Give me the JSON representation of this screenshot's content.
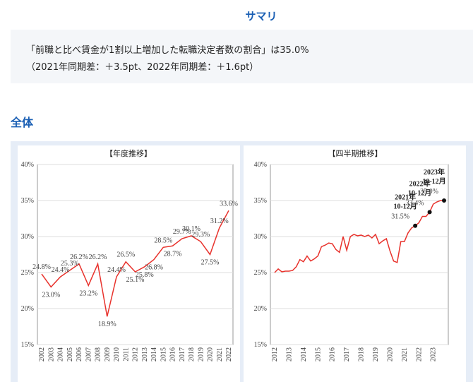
{
  "summary": {
    "heading": "サマリ",
    "lines": [
      "「前職と比べ賃金が1割以上増加した転職決定者数の割合」は35.0%",
      "（2021年同期差：＋3.5pt、2022年同期差：＋1.6pt）"
    ]
  },
  "section": "全体",
  "chart_data": [
    {
      "type": "line",
      "title": "【年度推移】",
      "color": "#e8322c",
      "categories": [
        "2002",
        "2003",
        "2004",
        "2005",
        "2006",
        "2007",
        "2008",
        "2009",
        "2010",
        "2011",
        "2012",
        "2013",
        "2014",
        "2015",
        "2016",
        "2017",
        "2018",
        "2019",
        "2020",
        "2021",
        "2022"
      ],
      "values": [
        24.8,
        23.0,
        24.4,
        25.3,
        26.2,
        23.2,
        26.2,
        18.9,
        24.4,
        26.5,
        25.1,
        25.8,
        26.8,
        28.5,
        28.7,
        29.7,
        30.1,
        29.3,
        27.5,
        31.2,
        33.6
      ],
      "value_labels": [
        "24.8%",
        "23.0%",
        "24.4%",
        "25.3%",
        "26.2%",
        "23.2%",
        "26.2%",
        "18.9%",
        "24.4%",
        "26.5%",
        "25.1%",
        "25.8%",
        "26.8%",
        "28.5%",
        "28.7%",
        "29.7%",
        "30.1%",
        "29.3%",
        "27.5%",
        "31.2%",
        "33.6%"
      ],
      "ylim": [
        15,
        40
      ],
      "yticks": [
        {
          "value": 15,
          "label": "15%"
        },
        {
          "value": 20,
          "label": "20%"
        },
        {
          "value": 25,
          "label": "25%"
        },
        {
          "value": 30,
          "label": "30%"
        },
        {
          "value": 35,
          "label": "35%"
        },
        {
          "value": 40,
          "label": "40%"
        }
      ]
    },
    {
      "type": "line",
      "title": "【四半期推移】",
      "color": "#e8322c",
      "categories": [
        "2012",
        null,
        null,
        null,
        "2013",
        null,
        null,
        null,
        "2014",
        null,
        null,
        null,
        "2015",
        null,
        null,
        null,
        "2016",
        null,
        null,
        null,
        "2017",
        null,
        null,
        null,
        "2018",
        null,
        null,
        null,
        "2019",
        null,
        null,
        null,
        "2020",
        null,
        null,
        null,
        "2021",
        null,
        null,
        null,
        "2022",
        null,
        null,
        null,
        "2023",
        null,
        null,
        null
      ],
      "values": [
        25.0,
        25.5,
        25.1,
        25.2,
        25.2,
        25.3,
        25.8,
        26.8,
        26.5,
        27.3,
        26.6,
        26.9,
        27.3,
        28.6,
        28.8,
        29.1,
        29.0,
        28.2,
        27.8,
        30.0,
        28.1,
        30.0,
        30.3,
        30.1,
        30.2,
        30.0,
        30.2,
        29.8,
        30.3,
        29.0,
        29.4,
        29.7,
        28.0,
        26.6,
        26.4,
        29.3,
        29.3,
        30.5,
        31.2,
        31.5,
        31.9,
        32.8,
        32.8,
        33.4,
        34.5,
        34.8,
        35.0,
        35.0
      ],
      "value_labels": [
        null,
        null,
        null,
        null,
        null,
        null,
        null,
        null,
        null,
        null,
        null,
        null,
        null,
        null,
        null,
        null,
        null,
        null,
        null,
        null,
        null,
        null,
        null,
        null,
        null,
        null,
        null,
        null,
        null,
        null,
        null,
        null,
        null,
        null,
        null,
        null,
        null,
        null,
        null,
        "31.5%",
        null,
        null,
        null,
        "33.4%",
        null,
        null,
        null,
        "35.0%"
      ],
      "point_labels": [
        null,
        null,
        null,
        null,
        null,
        null,
        null,
        null,
        null,
        null,
        null,
        null,
        null,
        null,
        null,
        null,
        null,
        null,
        null,
        null,
        null,
        null,
        null,
        null,
        null,
        null,
        null,
        null,
        null,
        null,
        null,
        null,
        null,
        null,
        null,
        null,
        null,
        null,
        null,
        [
          "2021年",
          "10-12月"
        ],
        null,
        null,
        null,
        [
          "2022年",
          "10-12月"
        ],
        null,
        null,
        null,
        [
          "2023年",
          "10-12月"
        ]
      ],
      "ylim": [
        15,
        40
      ],
      "yticks": [
        {
          "value": 15,
          "label": "15%"
        },
        {
          "value": 20,
          "label": "20%"
        },
        {
          "value": 25,
          "label": "25%"
        },
        {
          "value": 30,
          "label": "30%"
        },
        {
          "value": 35,
          "label": "35%"
        },
        {
          "value": 40,
          "label": "40%"
        }
      ]
    }
  ]
}
